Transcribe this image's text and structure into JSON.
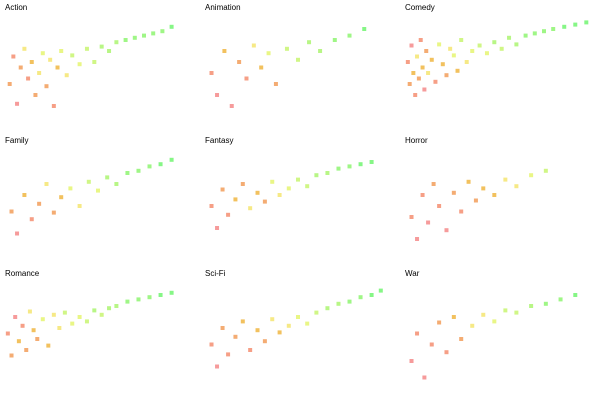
{
  "chart_data": [
    {
      "type": "scatter",
      "title": "Action",
      "xlim": [
        0,
        100
      ],
      "ylim": [
        0,
        100
      ],
      "x": [
        2,
        4,
        6,
        8,
        10,
        12,
        14,
        16,
        18,
        20,
        22,
        24,
        26,
        28,
        30,
        33,
        36,
        40,
        44,
        48,
        52,
        56,
        60,
        65,
        70,
        75,
        80,
        85,
        90
      ],
      "y": [
        40,
        65,
        22,
        55,
        72,
        45,
        60,
        30,
        50,
        68,
        38,
        62,
        20,
        55,
        70,
        48,
        66,
        58,
        72,
        60,
        74,
        70,
        78,
        80,
        82,
        84,
        86,
        88,
        92
      ],
      "values": [
        3,
        2,
        1,
        3,
        5,
        2,
        4,
        3,
        5,
        6,
        3,
        5,
        2,
        4,
        6,
        5,
        7,
        6,
        7,
        7,
        8,
        8,
        8,
        9,
        9,
        9,
        9,
        9,
        10
      ]
    },
    {
      "type": "scatter",
      "title": "Animation",
      "xlim": [
        0,
        100
      ],
      "ylim": [
        0,
        100
      ],
      "x": [
        3,
        6,
        10,
        14,
        18,
        22,
        26,
        30,
        34,
        38,
        44,
        50,
        56,
        62,
        70,
        78,
        86
      ],
      "y": [
        50,
        30,
        70,
        20,
        60,
        45,
        75,
        55,
        68,
        40,
        72,
        62,
        78,
        70,
        80,
        84,
        90
      ],
      "values": [
        2,
        1,
        4,
        1,
        3,
        2,
        5,
        4,
        6,
        3,
        7,
        7,
        8,
        8,
        9,
        9,
        10
      ]
    },
    {
      "type": "scatter",
      "title": "Comedy",
      "xlim": [
        0,
        100
      ],
      "ylim": [
        0,
        100
      ],
      "x": [
        1,
        2,
        3,
        4,
        5,
        6,
        7,
        8,
        9,
        10,
        11,
        12,
        14,
        16,
        18,
        20,
        22,
        24,
        26,
        28,
        30,
        33,
        36,
        40,
        44,
        48,
        52,
        56,
        60,
        65,
        70,
        75,
        80,
        86,
        92,
        98
      ],
      "y": [
        60,
        40,
        75,
        50,
        30,
        65,
        45,
        80,
        55,
        35,
        70,
        50,
        62,
        42,
        76,
        58,
        48,
        72,
        66,
        52,
        80,
        60,
        70,
        75,
        68,
        78,
        72,
        82,
        76,
        84,
        86,
        88,
        90,
        92,
        94,
        96
      ],
      "values": [
        2,
        3,
        1,
        4,
        2,
        5,
        3,
        2,
        4,
        1,
        3,
        5,
        4,
        2,
        6,
        4,
        3,
        5,
        6,
        4,
        7,
        5,
        6,
        7,
        6,
        8,
        7,
        8,
        8,
        9,
        9,
        9,
        9,
        10,
        10,
        10
      ]
    },
    {
      "type": "scatter",
      "title": "Family",
      "xlim": [
        0,
        100
      ],
      "ylim": [
        0,
        100
      ],
      "x": [
        3,
        6,
        10,
        14,
        18,
        22,
        26,
        30,
        35,
        40,
        45,
        50,
        55,
        60,
        66,
        72,
        78,
        84,
        90
      ],
      "y": [
        45,
        25,
        60,
        38,
        52,
        70,
        44,
        58,
        66,
        50,
        72,
        64,
        76,
        70,
        80,
        82,
        86,
        88,
        92
      ],
      "values": [
        3,
        1,
        4,
        2,
        3,
        5,
        3,
        4,
        6,
        5,
        7,
        6,
        8,
        8,
        9,
        9,
        9,
        10,
        10
      ]
    },
    {
      "type": "scatter",
      "title": "Fantasy",
      "xlim": [
        0,
        100
      ],
      "ylim": [
        0,
        100
      ],
      "x": [
        3,
        6,
        9,
        12,
        16,
        20,
        24,
        28,
        32,
        36,
        40,
        45,
        50,
        55,
        60,
        66,
        72,
        78,
        84,
        90
      ],
      "y": [
        50,
        30,
        65,
        42,
        56,
        70,
        48,
        62,
        54,
        72,
        60,
        66,
        74,
        68,
        78,
        80,
        84,
        86,
        88,
        90
      ],
      "values": [
        2,
        1,
        3,
        2,
        4,
        3,
        5,
        4,
        3,
        6,
        5,
        6,
        7,
        7,
        8,
        8,
        9,
        9,
        10,
        10
      ]
    },
    {
      "type": "scatter",
      "title": "Horror",
      "xlim": [
        0,
        100
      ],
      "ylim": [
        0,
        100
      ],
      "x": [
        3,
        6,
        9,
        12,
        15,
        18,
        22,
        26,
        30,
        34,
        38,
        42,
        48,
        54,
        60,
        68,
        76
      ],
      "y": [
        40,
        20,
        60,
        35,
        70,
        50,
        28,
        62,
        45,
        72,
        55,
        66,
        60,
        74,
        68,
        78,
        82
      ],
      "values": [
        2,
        1,
        2,
        1,
        3,
        2,
        1,
        3,
        2,
        4,
        3,
        4,
        4,
        5,
        5,
        6,
        7
      ]
    },
    {
      "type": "scatter",
      "title": "Romance",
      "xlim": [
        0,
        100
      ],
      "ylim": [
        0,
        100
      ],
      "x": [
        1,
        3,
        5,
        7,
        9,
        11,
        13,
        15,
        17,
        20,
        23,
        26,
        29,
        32,
        36,
        40,
        44,
        48,
        52,
        56,
        60,
        66,
        72,
        78,
        84,
        90
      ],
      "y": [
        55,
        35,
        70,
        48,
        62,
        40,
        75,
        58,
        50,
        68,
        44,
        72,
        60,
        74,
        64,
        70,
        66,
        76,
        72,
        78,
        80,
        84,
        86,
        88,
        90,
        92
      ],
      "values": [
        2,
        3,
        1,
        4,
        2,
        3,
        5,
        4,
        3,
        6,
        4,
        5,
        5,
        7,
        6,
        6,
        7,
        8,
        7,
        8,
        8,
        9,
        9,
        9,
        10,
        10
      ]
    },
    {
      "type": "scatter",
      "title": "Sci-Fi",
      "xlim": [
        0,
        100
      ],
      "ylim": [
        0,
        100
      ],
      "x": [
        3,
        6,
        9,
        12,
        16,
        20,
        24,
        28,
        32,
        36,
        40,
        45,
        50,
        55,
        60,
        66,
        72,
        78,
        84,
        90,
        95
      ],
      "y": [
        45,
        25,
        60,
        36,
        52,
        66,
        40,
        58,
        48,
        68,
        56,
        62,
        70,
        64,
        74,
        78,
        82,
        84,
        88,
        90,
        94
      ],
      "values": [
        2,
        1,
        3,
        2,
        3,
        4,
        2,
        4,
        3,
        5,
        4,
        5,
        6,
        6,
        7,
        8,
        8,
        9,
        9,
        10,
        10
      ]
    },
    {
      "type": "scatter",
      "title": "War",
      "xlim": [
        0,
        100
      ],
      "ylim": [
        0,
        100
      ],
      "x": [
        3,
        6,
        10,
        14,
        18,
        22,
        26,
        30,
        36,
        42,
        48,
        54,
        60,
        68,
        76,
        84,
        92
      ],
      "y": [
        30,
        55,
        15,
        45,
        65,
        38,
        70,
        50,
        62,
        72,
        66,
        76,
        74,
        80,
        82,
        86,
        90
      ],
      "values": [
        1,
        2,
        1,
        2,
        3,
        2,
        4,
        3,
        5,
        5,
        6,
        7,
        7,
        8,
        9,
        9,
        10
      ]
    }
  ]
}
